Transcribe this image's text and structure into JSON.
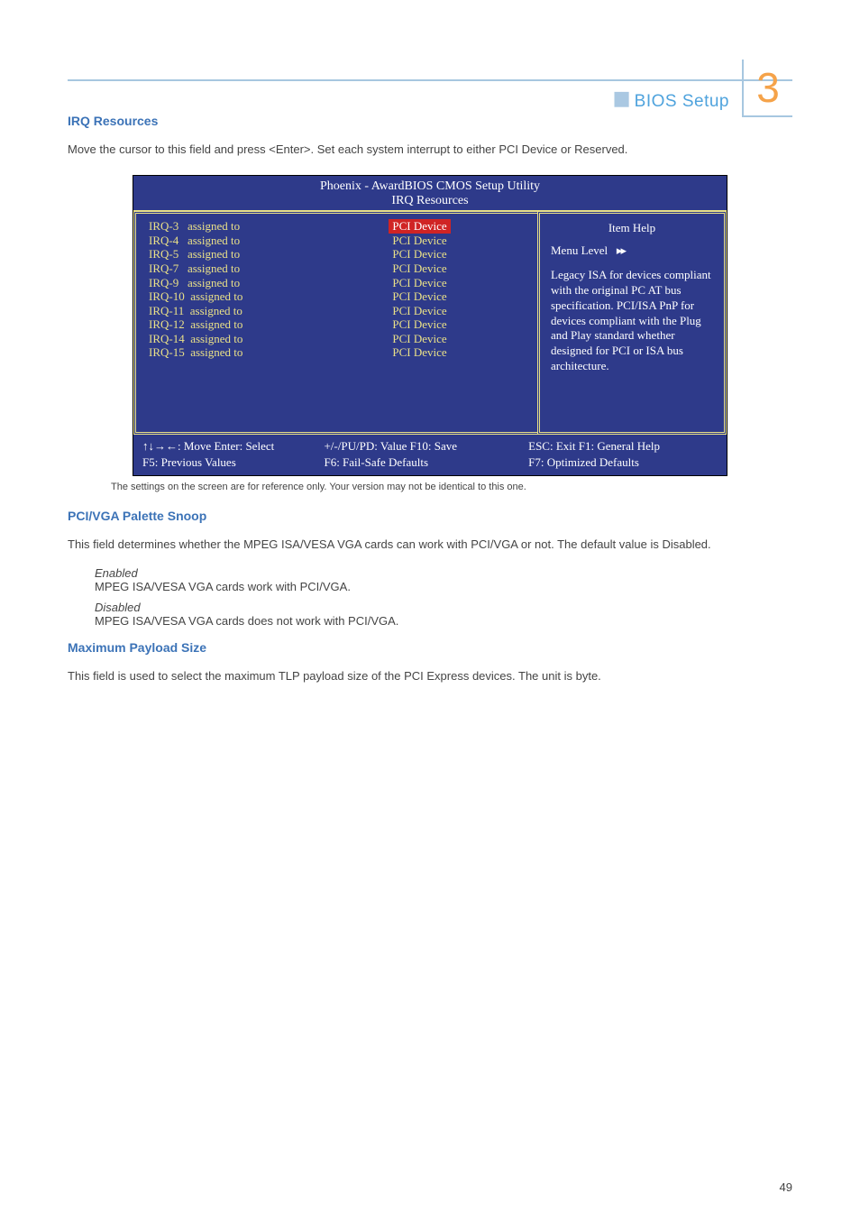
{
  "header": {
    "section_label": "BIOS Setup",
    "chapter_number": "3"
  },
  "sec1": {
    "title": "IRQ Resources",
    "body": "Move the cursor to this field and press <Enter>. Set each system interrupt to either PCI Device or Reserved."
  },
  "bios": {
    "title_line1": "Phoenix - AwardBIOS CMOS Setup Utility",
    "title_line2": "IRQ Resources",
    "irq_rows": [
      "IRQ-3   assigned to",
      "IRQ-4   assigned to",
      "IRQ-5   assigned to",
      "IRQ-7   assigned to",
      "IRQ-9   assigned to",
      "IRQ-10  assigned to",
      "IRQ-11  assigned to",
      "IRQ-12  assigned to",
      "IRQ-14  assigned to",
      "IRQ-15  assigned to"
    ],
    "pci_selected": "PCI Device",
    "pci_value": "PCI Device",
    "help": {
      "heading": "Item Help",
      "menu_level_label": "Menu Level",
      "menu_level_arrows": "▸▸",
      "body": "Legacy ISA for devices compliant with the original PC AT bus specification. PCI/ISA PnP for devices compliant with the Plug and Play standard whether designed for PCI or ISA bus architecture."
    },
    "footer": {
      "c1a": "↑↓→←: Move        Enter: Select",
      "c1b": "F5: Previous Values",
      "c2a": "+/-/PU/PD: Value        F10: Save",
      "c2b": "F6: Fail-Safe Defaults",
      "c3a": "ESC: Exit       F1: General Help",
      "c3b": "F7: Optimized Defaults"
    }
  },
  "caption": "The settings on the screen are for reference only. Your version may not be identical to this one.",
  "sec2": {
    "title": "PCI/VGA Palette Snoop",
    "body": "This field determines whether the MPEG ISA/VESA VGA cards can work with PCI/VGA or not. The default value is Disabled.",
    "opt1_head": "Enabled",
    "opt1_body": "MPEG ISA/VESA VGA cards work with PCI/VGA.",
    "opt2_head": "Disabled",
    "opt2_body": "MPEG ISA/VESA VGA cards does not work with PCI/VGA."
  },
  "sec3": {
    "title": "Maximum Payload Size",
    "body": "This field is used to select the maximum TLP payload size of the PCI Express devices. The unit is byte."
  },
  "page_number": "49"
}
